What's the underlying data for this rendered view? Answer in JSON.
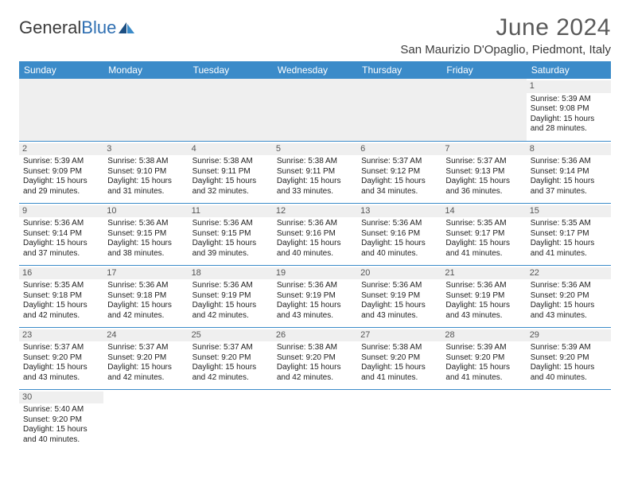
{
  "brand": {
    "part1": "General",
    "part2": "Blue"
  },
  "title": "June 2024",
  "location": "San Maurizio D'Opaglio, Piedmont, Italy",
  "header_bg": "#3b8bc9",
  "header_fg": "#ffffff",
  "rule_color": "#3b8bc9",
  "daynum_bg": "#efefef",
  "day_labels": [
    "Sunday",
    "Monday",
    "Tuesday",
    "Wednesday",
    "Thursday",
    "Friday",
    "Saturday"
  ],
  "weeks": [
    [
      null,
      null,
      null,
      null,
      null,
      null,
      {
        "n": "1",
        "sunrise": "Sunrise: 5:39 AM",
        "sunset": "Sunset: 9:08 PM",
        "d1": "Daylight: 15 hours",
        "d2": "and 28 minutes."
      }
    ],
    [
      {
        "n": "2",
        "sunrise": "Sunrise: 5:39 AM",
        "sunset": "Sunset: 9:09 PM",
        "d1": "Daylight: 15 hours",
        "d2": "and 29 minutes."
      },
      {
        "n": "3",
        "sunrise": "Sunrise: 5:38 AM",
        "sunset": "Sunset: 9:10 PM",
        "d1": "Daylight: 15 hours",
        "d2": "and 31 minutes."
      },
      {
        "n": "4",
        "sunrise": "Sunrise: 5:38 AM",
        "sunset": "Sunset: 9:11 PM",
        "d1": "Daylight: 15 hours",
        "d2": "and 32 minutes."
      },
      {
        "n": "5",
        "sunrise": "Sunrise: 5:38 AM",
        "sunset": "Sunset: 9:11 PM",
        "d1": "Daylight: 15 hours",
        "d2": "and 33 minutes."
      },
      {
        "n": "6",
        "sunrise": "Sunrise: 5:37 AM",
        "sunset": "Sunset: 9:12 PM",
        "d1": "Daylight: 15 hours",
        "d2": "and 34 minutes."
      },
      {
        "n": "7",
        "sunrise": "Sunrise: 5:37 AM",
        "sunset": "Sunset: 9:13 PM",
        "d1": "Daylight: 15 hours",
        "d2": "and 36 minutes."
      },
      {
        "n": "8",
        "sunrise": "Sunrise: 5:36 AM",
        "sunset": "Sunset: 9:14 PM",
        "d1": "Daylight: 15 hours",
        "d2": "and 37 minutes."
      }
    ],
    [
      {
        "n": "9",
        "sunrise": "Sunrise: 5:36 AM",
        "sunset": "Sunset: 9:14 PM",
        "d1": "Daylight: 15 hours",
        "d2": "and 37 minutes."
      },
      {
        "n": "10",
        "sunrise": "Sunrise: 5:36 AM",
        "sunset": "Sunset: 9:15 PM",
        "d1": "Daylight: 15 hours",
        "d2": "and 38 minutes."
      },
      {
        "n": "11",
        "sunrise": "Sunrise: 5:36 AM",
        "sunset": "Sunset: 9:15 PM",
        "d1": "Daylight: 15 hours",
        "d2": "and 39 minutes."
      },
      {
        "n": "12",
        "sunrise": "Sunrise: 5:36 AM",
        "sunset": "Sunset: 9:16 PM",
        "d1": "Daylight: 15 hours",
        "d2": "and 40 minutes."
      },
      {
        "n": "13",
        "sunrise": "Sunrise: 5:36 AM",
        "sunset": "Sunset: 9:16 PM",
        "d1": "Daylight: 15 hours",
        "d2": "and 40 minutes."
      },
      {
        "n": "14",
        "sunrise": "Sunrise: 5:35 AM",
        "sunset": "Sunset: 9:17 PM",
        "d1": "Daylight: 15 hours",
        "d2": "and 41 minutes."
      },
      {
        "n": "15",
        "sunrise": "Sunrise: 5:35 AM",
        "sunset": "Sunset: 9:17 PM",
        "d1": "Daylight: 15 hours",
        "d2": "and 41 minutes."
      }
    ],
    [
      {
        "n": "16",
        "sunrise": "Sunrise: 5:35 AM",
        "sunset": "Sunset: 9:18 PM",
        "d1": "Daylight: 15 hours",
        "d2": "and 42 minutes."
      },
      {
        "n": "17",
        "sunrise": "Sunrise: 5:36 AM",
        "sunset": "Sunset: 9:18 PM",
        "d1": "Daylight: 15 hours",
        "d2": "and 42 minutes."
      },
      {
        "n": "18",
        "sunrise": "Sunrise: 5:36 AM",
        "sunset": "Sunset: 9:19 PM",
        "d1": "Daylight: 15 hours",
        "d2": "and 42 minutes."
      },
      {
        "n": "19",
        "sunrise": "Sunrise: 5:36 AM",
        "sunset": "Sunset: 9:19 PM",
        "d1": "Daylight: 15 hours",
        "d2": "and 43 minutes."
      },
      {
        "n": "20",
        "sunrise": "Sunrise: 5:36 AM",
        "sunset": "Sunset: 9:19 PM",
        "d1": "Daylight: 15 hours",
        "d2": "and 43 minutes."
      },
      {
        "n": "21",
        "sunrise": "Sunrise: 5:36 AM",
        "sunset": "Sunset: 9:19 PM",
        "d1": "Daylight: 15 hours",
        "d2": "and 43 minutes."
      },
      {
        "n": "22",
        "sunrise": "Sunrise: 5:36 AM",
        "sunset": "Sunset: 9:20 PM",
        "d1": "Daylight: 15 hours",
        "d2": "and 43 minutes."
      }
    ],
    [
      {
        "n": "23",
        "sunrise": "Sunrise: 5:37 AM",
        "sunset": "Sunset: 9:20 PM",
        "d1": "Daylight: 15 hours",
        "d2": "and 43 minutes."
      },
      {
        "n": "24",
        "sunrise": "Sunrise: 5:37 AM",
        "sunset": "Sunset: 9:20 PM",
        "d1": "Daylight: 15 hours",
        "d2": "and 42 minutes."
      },
      {
        "n": "25",
        "sunrise": "Sunrise: 5:37 AM",
        "sunset": "Sunset: 9:20 PM",
        "d1": "Daylight: 15 hours",
        "d2": "and 42 minutes."
      },
      {
        "n": "26",
        "sunrise": "Sunrise: 5:38 AM",
        "sunset": "Sunset: 9:20 PM",
        "d1": "Daylight: 15 hours",
        "d2": "and 42 minutes."
      },
      {
        "n": "27",
        "sunrise": "Sunrise: 5:38 AM",
        "sunset": "Sunset: 9:20 PM",
        "d1": "Daylight: 15 hours",
        "d2": "and 41 minutes."
      },
      {
        "n": "28",
        "sunrise": "Sunrise: 5:39 AM",
        "sunset": "Sunset: 9:20 PM",
        "d1": "Daylight: 15 hours",
        "d2": "and 41 minutes."
      },
      {
        "n": "29",
        "sunrise": "Sunrise: 5:39 AM",
        "sunset": "Sunset: 9:20 PM",
        "d1": "Daylight: 15 hours",
        "d2": "and 40 minutes."
      }
    ],
    [
      {
        "n": "30",
        "sunrise": "Sunrise: 5:40 AM",
        "sunset": "Sunset: 9:20 PM",
        "d1": "Daylight: 15 hours",
        "d2": "and 40 minutes."
      },
      null,
      null,
      null,
      null,
      null,
      null
    ]
  ]
}
